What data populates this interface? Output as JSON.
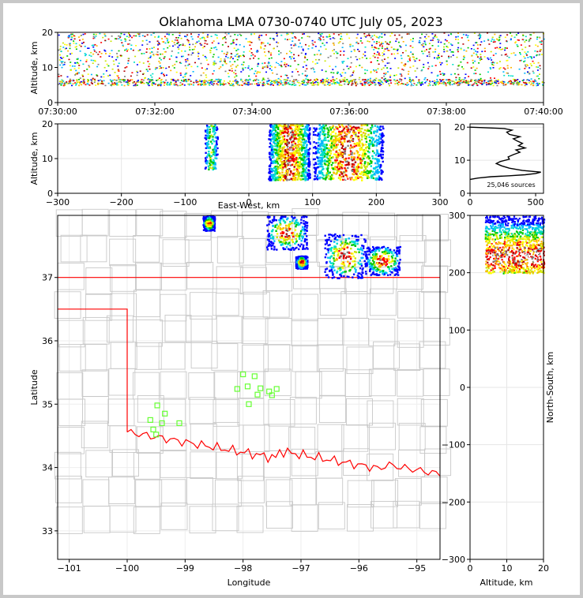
{
  "title": "Oklahoma LMA 0730-0740 UTC July 05, 2023",
  "colors": {
    "density": [
      "#0000ff",
      "#00b4ff",
      "#00e0c8",
      "#00c800",
      "#c8e600",
      "#ffff00",
      "#ffb400",
      "#ff0000",
      "#b40000",
      "#808080",
      "#ffffff"
    ],
    "state_border": "#ff0000",
    "county_lines": "#c8c8c8",
    "stations": "#66ff33"
  },
  "chart_data": [
    {
      "id": "time-height",
      "type": "heatmap",
      "xlabel": "",
      "ylabel": "Altitude, km",
      "x_ticks": [
        "07:30:00",
        "07:32:00",
        "07:34:00",
        "07:36:00",
        "07:38:00",
        "07:40:00"
      ],
      "y_ticks": [
        0,
        10,
        20
      ],
      "xlim_minutes": [
        0,
        10
      ],
      "ylim": [
        0,
        20
      ],
      "source_altitude_range_km": [
        5,
        20
      ]
    },
    {
      "id": "east-west-altitude",
      "type": "heatmap",
      "xlabel": "East-West, km",
      "ylabel": "Altitude, km",
      "x_ticks": [
        -300,
        -200,
        -100,
        0,
        100,
        200,
        300
      ],
      "y_ticks": [
        0,
        10,
        20
      ],
      "xlim": [
        -300,
        300
      ],
      "ylim": [
        0,
        20
      ],
      "clusters": [
        {
          "x_range": [
            -70,
            -50
          ],
          "alt_range": [
            7,
            20
          ]
        },
        {
          "x_range": [
            30,
            95
          ],
          "alt_range": [
            4,
            20
          ]
        },
        {
          "x_range": [
            100,
            210
          ],
          "alt_range": [
            4,
            20
          ]
        }
      ]
    },
    {
      "id": "altitude-histogram",
      "type": "line",
      "xlabel": "",
      "ylabel": "",
      "x_ticks": [
        0,
        500
      ],
      "y_ticks": [
        0,
        10,
        20
      ],
      "xlim": [
        0,
        560
      ],
      "ylim": [
        0,
        21
      ],
      "annotation": "25,046 sources",
      "points": [
        [
          0,
          4.2
        ],
        [
          60,
          4.6
        ],
        [
          160,
          5.0
        ],
        [
          300,
          5.3
        ],
        [
          420,
          5.6
        ],
        [
          500,
          6.0
        ],
        [
          540,
          6.4
        ],
        [
          400,
          6.9
        ],
        [
          300,
          7.6
        ],
        [
          240,
          8.3
        ],
        [
          200,
          9.0
        ],
        [
          230,
          9.6
        ],
        [
          300,
          10.3
        ],
        [
          290,
          11.0
        ],
        [
          330,
          11.7
        ],
        [
          380,
          12.4
        ],
        [
          350,
          13.1
        ],
        [
          420,
          13.7
        ],
        [
          370,
          14.4
        ],
        [
          400,
          15.1
        ],
        [
          360,
          15.8
        ],
        [
          330,
          16.5
        ],
        [
          380,
          17.1
        ],
        [
          300,
          17.8
        ],
        [
          280,
          18.5
        ],
        [
          320,
          19.1
        ],
        [
          260,
          19.6
        ],
        [
          0,
          20
        ]
      ]
    },
    {
      "id": "plan-view",
      "type": "scatter",
      "xlabel": "Longitude",
      "ylabel": "Latitude",
      "x_ticks": [
        -101,
        -100,
        -99,
        -98,
        -97,
        -96,
        -95
      ],
      "y_ticks": [
        33,
        34,
        35,
        36,
        37
      ],
      "xlim": [
        -101.2,
        -94.6
      ],
      "ylim": [
        32.55,
        37.98
      ],
      "stations": [
        [
          -99.35,
          34.85
        ],
        [
          -99.6,
          34.75
        ],
        [
          -99.4,
          34.7
        ],
        [
          -99.1,
          34.7
        ],
        [
          -99.55,
          34.6
        ],
        [
          -99.5,
          34.52
        ],
        [
          -99.48,
          34.98
        ],
        [
          -98.0,
          35.47
        ],
        [
          -97.8,
          35.44
        ],
        [
          -98.1,
          35.24
        ],
        [
          -97.92,
          35.28
        ],
        [
          -97.7,
          35.25
        ],
        [
          -97.55,
          35.2
        ],
        [
          -97.42,
          35.24
        ],
        [
          -97.75,
          35.15
        ],
        [
          -97.5,
          35.14
        ],
        [
          -97.9,
          35.0
        ]
      ],
      "clusters": [
        {
          "lon_range": [
            -98.7,
            -98.5
          ],
          "lat_range": [
            37.75,
            37.98
          ]
        },
        {
          "lon_range": [
            -97.6,
            -96.9
          ],
          "lat_range": [
            37.45,
            37.98
          ]
        },
        {
          "lon_range": [
            -97.1,
            -96.9
          ],
          "lat_range": [
            37.15,
            37.35
          ]
        },
        {
          "lon_range": [
            -96.6,
            -95.9
          ],
          "lat_range": [
            37.0,
            37.7
          ]
        },
        {
          "lon_range": [
            -95.9,
            -95.3
          ],
          "lat_range": [
            37.05,
            37.5
          ]
        }
      ]
    },
    {
      "id": "altitude-north-south",
      "type": "heatmap",
      "xlabel": "Altitude, km",
      "ylabel": "North-South, km",
      "x_ticks": [
        0,
        10,
        20
      ],
      "y_ticks": [
        -300,
        -200,
        -100,
        0,
        100,
        200,
        300
      ],
      "xlim": [
        0,
        20
      ],
      "ylim": [
        -300,
        300
      ],
      "cluster": {
        "alt_range": [
          4,
          20
        ],
        "ns_range": [
          200,
          300
        ]
      }
    }
  ]
}
